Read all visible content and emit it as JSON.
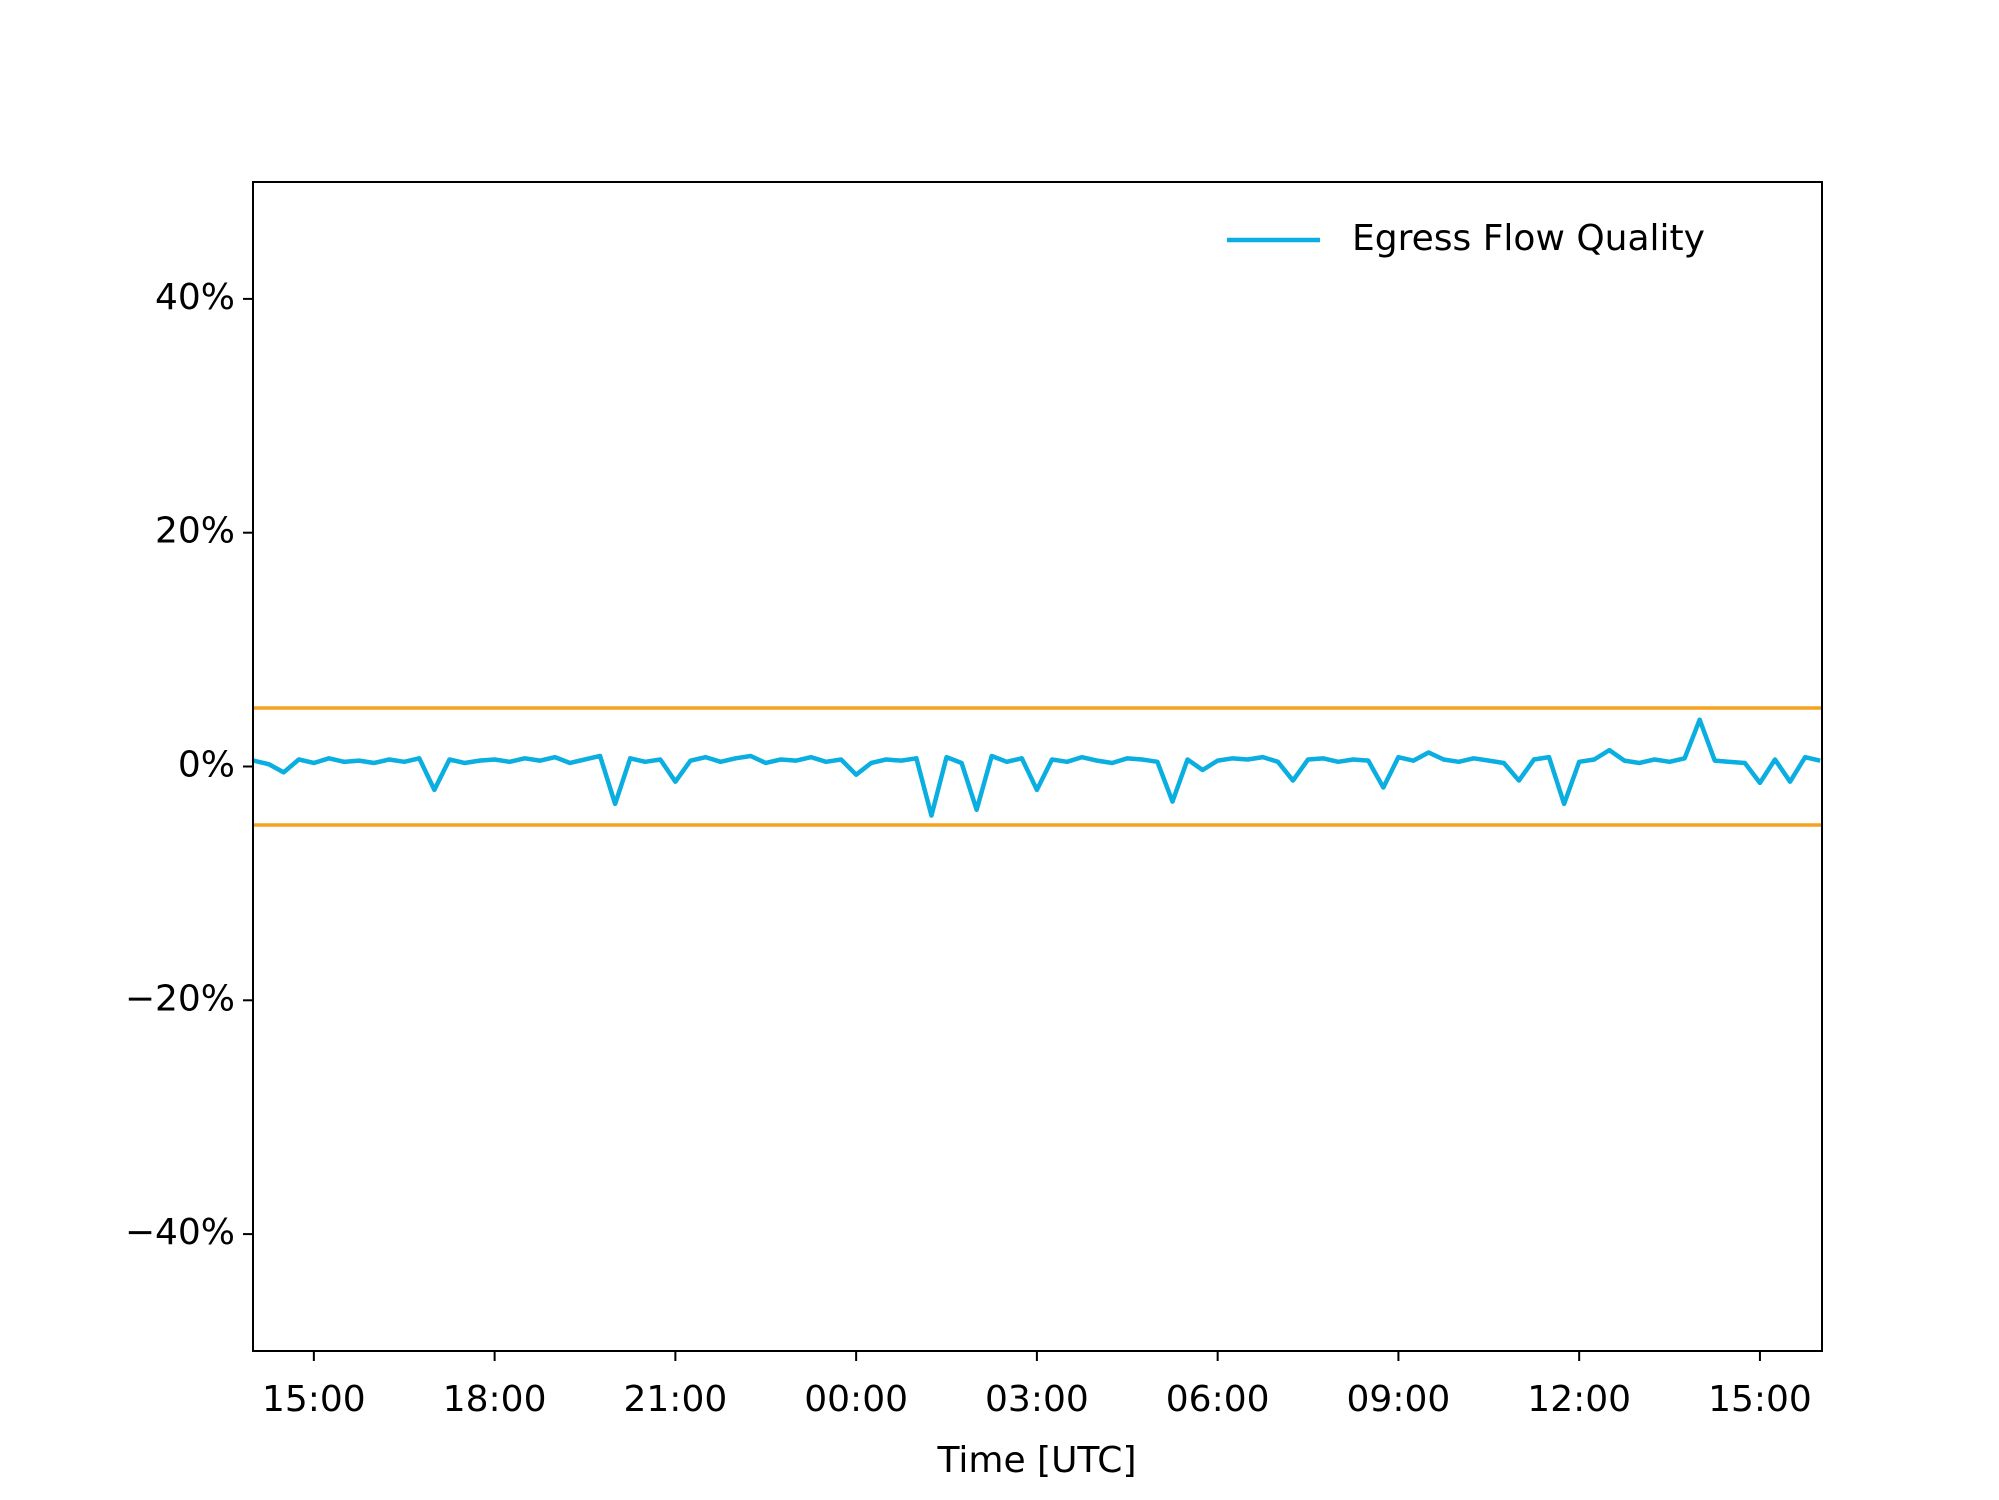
{
  "chart_data": {
    "type": "line",
    "xlabel": "Time [UTC]",
    "x": [
      14,
      14.25,
      14.5,
      14.75,
      15,
      15.25,
      15.5,
      15.75,
      16,
      16.25,
      16.5,
      16.75,
      17,
      17.25,
      17.5,
      17.75,
      18,
      18.25,
      18.5,
      18.75,
      19,
      19.25,
      19.5,
      19.75,
      20,
      20.25,
      20.5,
      20.75,
      21,
      21.25,
      21.5,
      21.75,
      22,
      22.25,
      22.5,
      22.75,
      23,
      23.25,
      23.5,
      23.75,
      24,
      24.25,
      24.5,
      24.75,
      25,
      25.25,
      25.5,
      25.75,
      26,
      26.25,
      26.5,
      26.75,
      27,
      27.25,
      27.5,
      27.75,
      28,
      28.25,
      28.5,
      28.75,
      29,
      29.25,
      29.5,
      29.75,
      30,
      30.25,
      30.5,
      30.75,
      31,
      31.25,
      31.5,
      31.75,
      32,
      32.25,
      32.5,
      32.75,
      33,
      33.25,
      33.5,
      33.75,
      34,
      34.25,
      34.5,
      34.75,
      35,
      35.25,
      35.5,
      35.75,
      36,
      36.25,
      36.5,
      36.75,
      37,
      37.25,
      37.5,
      37.75,
      38,
      38.25,
      38.5,
      38.75,
      39,
      39.25,
      39.5,
      39.75,
      40
    ],
    "series": [
      {
        "name": "Egress Flow Quality",
        "color": "#0aaee0",
        "values": [
          0.5,
          0.2,
          -0.5,
          0.6,
          0.3,
          0.7,
          0.4,
          0.5,
          0.3,
          0.6,
          0.4,
          0.7,
          -2.0,
          0.6,
          0.3,
          0.5,
          0.6,
          0.4,
          0.7,
          0.5,
          0.8,
          0.3,
          0.6,
          0.9,
          -3.2,
          0.7,
          0.4,
          0.6,
          -1.3,
          0.5,
          0.8,
          0.4,
          0.7,
          0.9,
          0.3,
          0.6,
          0.5,
          0.8,
          0.4,
          0.6,
          -0.7,
          0.3,
          0.6,
          0.5,
          0.7,
          -4.2,
          0.8,
          0.3,
          -3.7,
          0.9,
          0.4,
          0.7,
          -2.0,
          0.6,
          0.4,
          0.8,
          0.5,
          0.3,
          0.7,
          0.6,
          0.4,
          -3.0,
          0.6,
          -0.3,
          0.5,
          0.7,
          0.6,
          0.8,
          0.4,
          -1.2,
          0.6,
          0.7,
          0.4,
          0.6,
          0.5,
          -1.8,
          0.8,
          0.5,
          1.2,
          0.6,
          0.4,
          0.7,
          0.5,
          0.3,
          -1.2,
          0.6,
          0.8,
          -3.2,
          0.4,
          0.6,
          1.4,
          0.5,
          0.3,
          0.6,
          0.4,
          0.7,
          4.0,
          0.5,
          0.4,
          0.3,
          -1.4,
          0.6,
          -1.3,
          0.8,
          0.5
        ]
      }
    ],
    "reference_lines": [
      5,
      -5
    ],
    "reference_color": "#f5a21e",
    "xlim": [
      13.99,
      40.03
    ],
    "xticks": [
      {
        "value": 15,
        "label": "15:00"
      },
      {
        "value": 18,
        "label": "18:00"
      },
      {
        "value": 21,
        "label": "21:00"
      },
      {
        "value": 24,
        "label": "00:00"
      },
      {
        "value": 27,
        "label": "03:00"
      },
      {
        "value": 30,
        "label": "06:00"
      },
      {
        "value": 33,
        "label": "09:00"
      },
      {
        "value": 36,
        "label": "12:00"
      },
      {
        "value": 39,
        "label": "15:00"
      }
    ],
    "ylim": [
      -50,
      50
    ],
    "yticks": [
      {
        "value": -40,
        "label": "−40%"
      },
      {
        "value": -20,
        "label": "−20%"
      },
      {
        "value": 0,
        "label": "0%"
      },
      {
        "value": 20,
        "label": "20%"
      },
      {
        "value": 40,
        "label": "40%"
      }
    ],
    "grid": false,
    "legend": "upper right"
  }
}
